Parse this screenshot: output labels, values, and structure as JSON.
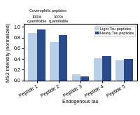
{
  "chart_data": {
    "type": "bar",
    "categories": [
      "Peptide 1",
      "Peptide 2",
      "Peptide 3",
      "Peptide 4",
      "Peptide 5"
    ],
    "series": [
      {
        "name": "Light Tau peptides",
        "color": "#b8cfe8",
        "values": [
          0.88,
          0.72,
          0.12,
          0.42,
          0.38
        ]
      },
      {
        "name": "Heavy Tau peptides",
        "color": "#2a4a8a",
        "values": [
          0.95,
          0.85,
          0.08,
          0.45,
          0.4
        ]
      }
    ],
    "x_label": "Endogenous tau",
    "y_label": "MS2 intensity (normalized)",
    "ylim": [
      0,
      1.05
    ],
    "yticks": [
      {
        "value": 0,
        "label": "0.0"
      },
      {
        "value": 0.2,
        "label": "0.2"
      },
      {
        "value": 0.4,
        "label": "0.4"
      },
      {
        "value": 0.6,
        "label": "0.6"
      },
      {
        "value": 0.8,
        "label": "0.8"
      },
      {
        "value": 1,
        "label": "1.0"
      }
    ],
    "legend": "upper right",
    "annotations": [
      {
        "text": "Coverophilic peptides",
        "categories": [
          "Peptide 1",
          "Peptide 2"
        ]
      },
      {
        "text": "100%\nquantifiable",
        "categories": [
          "Peptide 1"
        ]
      },
      {
        "text": "100%\nquantifiable",
        "categories": [
          "Peptide 2"
        ]
      }
    ]
  }
}
